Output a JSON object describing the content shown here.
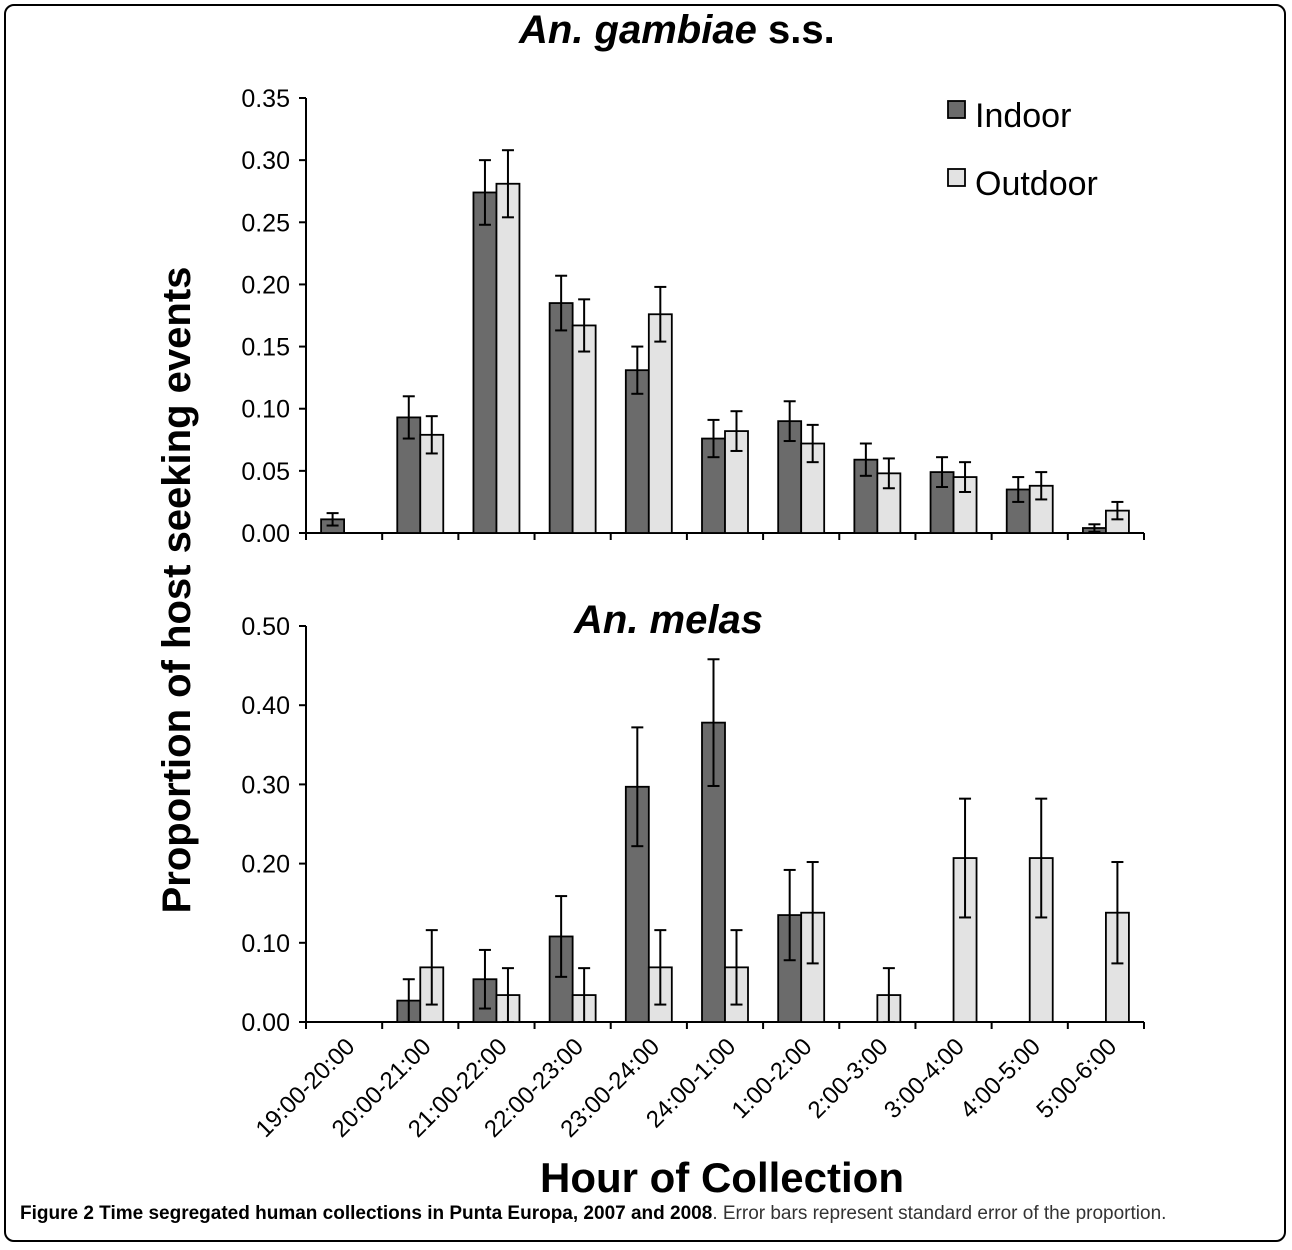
{
  "figure": {
    "ylabel": "Proportion of host seeking events",
    "xlabel": "Hour of Collection",
    "caption_bold": "Figure 2 Time segregated human collections in Punta Europa, 2007 and 2008",
    "caption_rest": ". Error bars represent standard error of the proportion."
  },
  "chart_data": [
    {
      "type": "bar",
      "title_italic": "An. gambiae",
      "title_plain": " s.s.",
      "categories": [
        "19:00-20:00",
        "20:00-21:00",
        "21:00-22:00",
        "22:00-23:00",
        "23:00-24:00",
        "24:00-1:00",
        "1:00-2:00",
        "2:00-3:00",
        "3:00-4:00",
        "4:00-5:00",
        "5:00-6:00"
      ],
      "ylim": [
        0,
        0.35
      ],
      "yticks": [
        "0.00",
        "0.05",
        "0.10",
        "0.15",
        "0.20",
        "0.25",
        "0.30",
        "0.35"
      ],
      "series": [
        {
          "name": "Indoor",
          "color": "#6b6b6b",
          "values": [
            0.011,
            0.093,
            0.274,
            0.185,
            0.131,
            0.076,
            0.09,
            0.059,
            0.049,
            0.035,
            0.004
          ],
          "errors": [
            0.005,
            0.017,
            0.026,
            0.022,
            0.019,
            0.015,
            0.016,
            0.013,
            0.012,
            0.01,
            0.003
          ]
        },
        {
          "name": "Outdoor",
          "color": "#e3e3e3",
          "values": [
            0.0,
            0.079,
            0.281,
            0.167,
            0.176,
            0.082,
            0.072,
            0.048,
            0.045,
            0.038,
            0.018
          ],
          "errors": [
            0.0,
            0.015,
            0.027,
            0.021,
            0.022,
            0.016,
            0.015,
            0.012,
            0.012,
            0.011,
            0.007
          ]
        }
      ],
      "legend": "top-right",
      "grid": false
    },
    {
      "type": "bar",
      "title_italic": "An. melas",
      "title_plain": "",
      "categories": [
        "19:00-20:00",
        "20:00-21:00",
        "21:00-22:00",
        "22:00-23:00",
        "23:00-24:00",
        "24:00-1:00",
        "1:00-2:00",
        "2:00-3:00",
        "3:00-4:00",
        "4:00-5:00",
        "5:00-6:00"
      ],
      "ylim": [
        0,
        0.5
      ],
      "yticks": [
        "0.00",
        "0.10",
        "0.20",
        "0.30",
        "0.40",
        "0.50"
      ],
      "series": [
        {
          "name": "Indoor",
          "color": "#6b6b6b",
          "values": [
            0.0,
            0.027,
            0.054,
            0.108,
            0.297,
            0.378,
            0.135,
            0.0,
            0.0,
            0.0,
            0.0
          ],
          "errors": [
            0.0,
            0.027,
            0.037,
            0.051,
            0.075,
            0.08,
            0.057,
            0.0,
            0.0,
            0.0,
            0.0
          ]
        },
        {
          "name": "Outdoor",
          "color": "#e3e3e3",
          "values": [
            0.0,
            0.069,
            0.034,
            0.034,
            0.069,
            0.069,
            0.138,
            0.034,
            0.207,
            0.207,
            0.138
          ],
          "errors": [
            0.0,
            0.047,
            0.034,
            0.034,
            0.047,
            0.047,
            0.064,
            0.034,
            0.075,
            0.075,
            0.064
          ]
        }
      ],
      "legend": "none",
      "grid": false
    }
  ]
}
